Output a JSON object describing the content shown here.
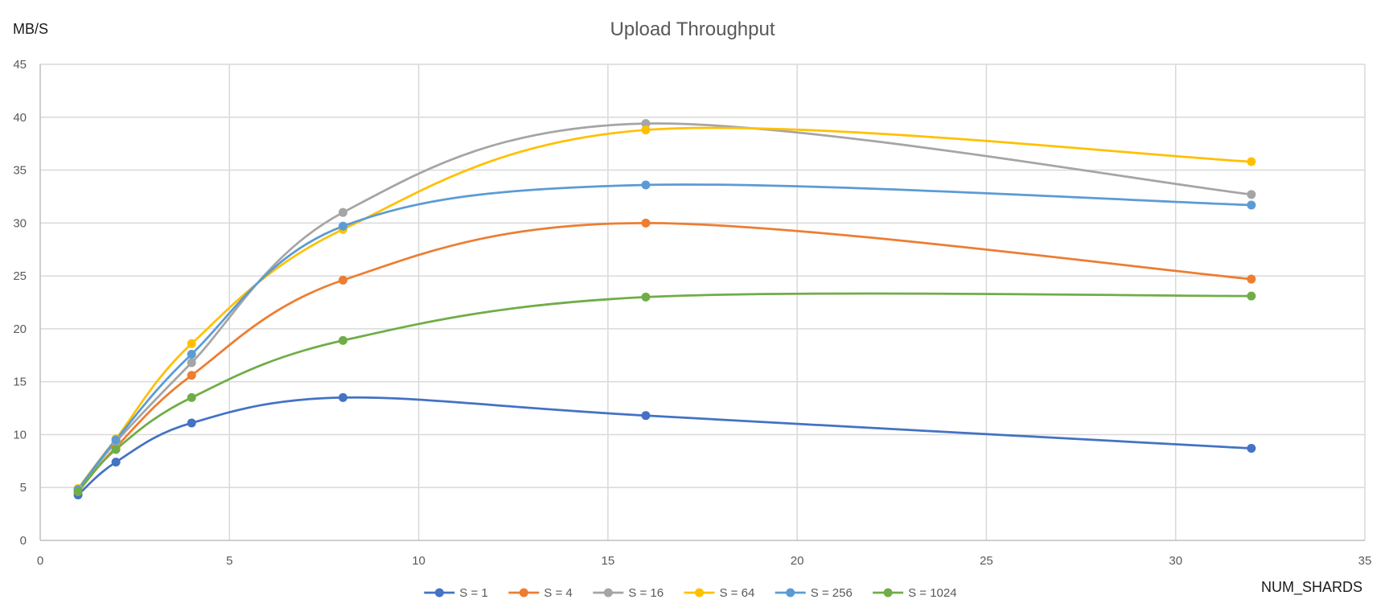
{
  "chart_data": {
    "type": "line",
    "title": "Upload Throughput",
    "xlabel": "NUM_SHARDS",
    "ylabel": "MB/S",
    "xlim": [
      0,
      35
    ],
    "ylim": [
      0,
      45
    ],
    "xticks": [
      0,
      5,
      10,
      15,
      20,
      25,
      30,
      35
    ],
    "yticks": [
      0,
      5,
      10,
      15,
      20,
      25,
      30,
      35,
      40,
      45
    ],
    "grid": true,
    "legend_position": "bottom",
    "smooth": true,
    "x": [
      1,
      2,
      4,
      8,
      16,
      32
    ],
    "series": [
      {
        "name": "S = 1",
        "color": "#4472C4",
        "values": [
          4.3,
          7.4,
          11.1,
          13.5,
          11.8,
          8.7
        ]
      },
      {
        "name": "S = 4",
        "color": "#ED7D31",
        "values": [
          4.6,
          8.8,
          15.6,
          24.6,
          30.0,
          24.7
        ]
      },
      {
        "name": "S = 16",
        "color": "#A5A5A5",
        "values": [
          4.7,
          9.3,
          16.8,
          31.0,
          39.4,
          32.7
        ]
      },
      {
        "name": "S = 64",
        "color": "#FFC000",
        "values": [
          4.9,
          9.6,
          18.6,
          29.4,
          38.8,
          35.8
        ]
      },
      {
        "name": "S = 256",
        "color": "#5B9BD5",
        "values": [
          4.8,
          9.5,
          17.6,
          29.7,
          33.6,
          31.7
        ]
      },
      {
        "name": "S = 1024",
        "color": "#70AD47",
        "values": [
          4.6,
          8.6,
          13.5,
          18.9,
          23.0,
          23.1
        ]
      }
    ]
  }
}
